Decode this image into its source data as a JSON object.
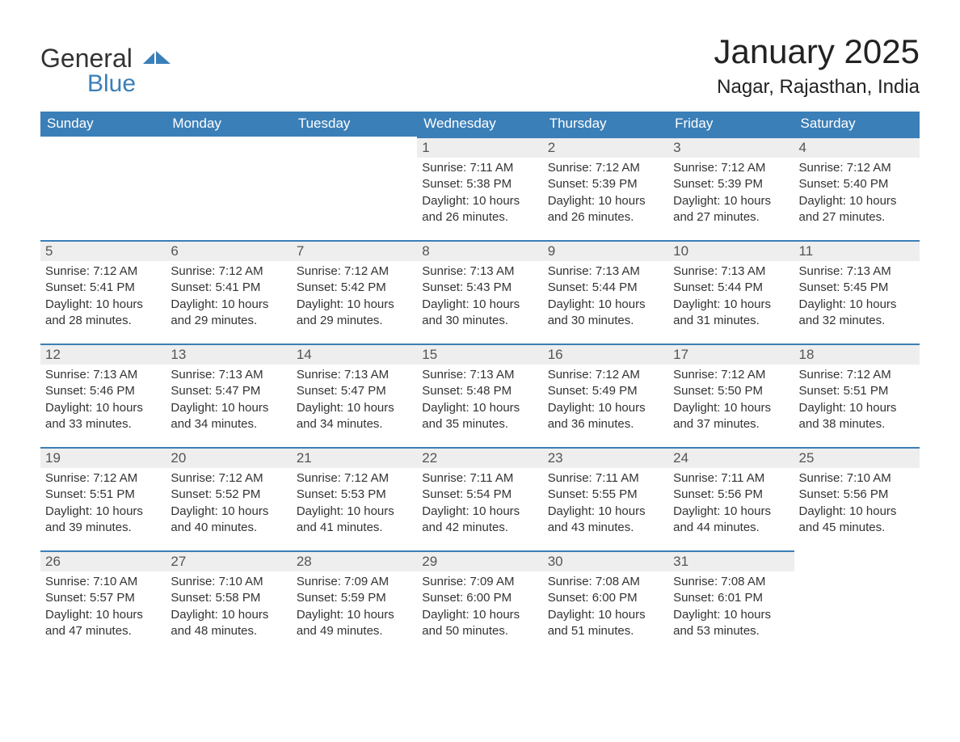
{
  "logo": {
    "word1": "General",
    "word2": "Blue"
  },
  "title": "January 2025",
  "location": "Nagar, Rajasthan, India",
  "colors": {
    "brand_blue": "#3b7fb8",
    "header_bg": "#3b7fb8",
    "header_text": "#ffffff",
    "daynum_bg": "#eeeeee",
    "text": "#333333",
    "page_bg": "#ffffff"
  },
  "fonts": {
    "title_size_pt": 32,
    "location_size_pt": 18,
    "header_size_pt": 13,
    "body_size_pt": 11
  },
  "layout": {
    "columns": 7,
    "rows": 5,
    "aspect": "1188x918"
  },
  "weekdays": [
    "Sunday",
    "Monday",
    "Tuesday",
    "Wednesday",
    "Thursday",
    "Friday",
    "Saturday"
  ],
  "weeks": [
    [
      {
        "n": "",
        "sunrise": "",
        "sunset": "",
        "daylight": ""
      },
      {
        "n": "",
        "sunrise": "",
        "sunset": "",
        "daylight": ""
      },
      {
        "n": "",
        "sunrise": "",
        "sunset": "",
        "daylight": ""
      },
      {
        "n": "1",
        "sunrise": "Sunrise: 7:11 AM",
        "sunset": "Sunset: 5:38 PM",
        "daylight": "Daylight: 10 hours and 26 minutes."
      },
      {
        "n": "2",
        "sunrise": "Sunrise: 7:12 AM",
        "sunset": "Sunset: 5:39 PM",
        "daylight": "Daylight: 10 hours and 26 minutes."
      },
      {
        "n": "3",
        "sunrise": "Sunrise: 7:12 AM",
        "sunset": "Sunset: 5:39 PM",
        "daylight": "Daylight: 10 hours and 27 minutes."
      },
      {
        "n": "4",
        "sunrise": "Sunrise: 7:12 AM",
        "sunset": "Sunset: 5:40 PM",
        "daylight": "Daylight: 10 hours and 27 minutes."
      }
    ],
    [
      {
        "n": "5",
        "sunrise": "Sunrise: 7:12 AM",
        "sunset": "Sunset: 5:41 PM",
        "daylight": "Daylight: 10 hours and 28 minutes."
      },
      {
        "n": "6",
        "sunrise": "Sunrise: 7:12 AM",
        "sunset": "Sunset: 5:41 PM",
        "daylight": "Daylight: 10 hours and 29 minutes."
      },
      {
        "n": "7",
        "sunrise": "Sunrise: 7:12 AM",
        "sunset": "Sunset: 5:42 PM",
        "daylight": "Daylight: 10 hours and 29 minutes."
      },
      {
        "n": "8",
        "sunrise": "Sunrise: 7:13 AM",
        "sunset": "Sunset: 5:43 PM",
        "daylight": "Daylight: 10 hours and 30 minutes."
      },
      {
        "n": "9",
        "sunrise": "Sunrise: 7:13 AM",
        "sunset": "Sunset: 5:44 PM",
        "daylight": "Daylight: 10 hours and 30 minutes."
      },
      {
        "n": "10",
        "sunrise": "Sunrise: 7:13 AM",
        "sunset": "Sunset: 5:44 PM",
        "daylight": "Daylight: 10 hours and 31 minutes."
      },
      {
        "n": "11",
        "sunrise": "Sunrise: 7:13 AM",
        "sunset": "Sunset: 5:45 PM",
        "daylight": "Daylight: 10 hours and 32 minutes."
      }
    ],
    [
      {
        "n": "12",
        "sunrise": "Sunrise: 7:13 AM",
        "sunset": "Sunset: 5:46 PM",
        "daylight": "Daylight: 10 hours and 33 minutes."
      },
      {
        "n": "13",
        "sunrise": "Sunrise: 7:13 AM",
        "sunset": "Sunset: 5:47 PM",
        "daylight": "Daylight: 10 hours and 34 minutes."
      },
      {
        "n": "14",
        "sunrise": "Sunrise: 7:13 AM",
        "sunset": "Sunset: 5:47 PM",
        "daylight": "Daylight: 10 hours and 34 minutes."
      },
      {
        "n": "15",
        "sunrise": "Sunrise: 7:13 AM",
        "sunset": "Sunset: 5:48 PM",
        "daylight": "Daylight: 10 hours and 35 minutes."
      },
      {
        "n": "16",
        "sunrise": "Sunrise: 7:12 AM",
        "sunset": "Sunset: 5:49 PM",
        "daylight": "Daylight: 10 hours and 36 minutes."
      },
      {
        "n": "17",
        "sunrise": "Sunrise: 7:12 AM",
        "sunset": "Sunset: 5:50 PM",
        "daylight": "Daylight: 10 hours and 37 minutes."
      },
      {
        "n": "18",
        "sunrise": "Sunrise: 7:12 AM",
        "sunset": "Sunset: 5:51 PM",
        "daylight": "Daylight: 10 hours and 38 minutes."
      }
    ],
    [
      {
        "n": "19",
        "sunrise": "Sunrise: 7:12 AM",
        "sunset": "Sunset: 5:51 PM",
        "daylight": "Daylight: 10 hours and 39 minutes."
      },
      {
        "n": "20",
        "sunrise": "Sunrise: 7:12 AM",
        "sunset": "Sunset: 5:52 PM",
        "daylight": "Daylight: 10 hours and 40 minutes."
      },
      {
        "n": "21",
        "sunrise": "Sunrise: 7:12 AM",
        "sunset": "Sunset: 5:53 PM",
        "daylight": "Daylight: 10 hours and 41 minutes."
      },
      {
        "n": "22",
        "sunrise": "Sunrise: 7:11 AM",
        "sunset": "Sunset: 5:54 PM",
        "daylight": "Daylight: 10 hours and 42 minutes."
      },
      {
        "n": "23",
        "sunrise": "Sunrise: 7:11 AM",
        "sunset": "Sunset: 5:55 PM",
        "daylight": "Daylight: 10 hours and 43 minutes."
      },
      {
        "n": "24",
        "sunrise": "Sunrise: 7:11 AM",
        "sunset": "Sunset: 5:56 PM",
        "daylight": "Daylight: 10 hours and 44 minutes."
      },
      {
        "n": "25",
        "sunrise": "Sunrise: 7:10 AM",
        "sunset": "Sunset: 5:56 PM",
        "daylight": "Daylight: 10 hours and 45 minutes."
      }
    ],
    [
      {
        "n": "26",
        "sunrise": "Sunrise: 7:10 AM",
        "sunset": "Sunset: 5:57 PM",
        "daylight": "Daylight: 10 hours and 47 minutes."
      },
      {
        "n": "27",
        "sunrise": "Sunrise: 7:10 AM",
        "sunset": "Sunset: 5:58 PM",
        "daylight": "Daylight: 10 hours and 48 minutes."
      },
      {
        "n": "28",
        "sunrise": "Sunrise: 7:09 AM",
        "sunset": "Sunset: 5:59 PM",
        "daylight": "Daylight: 10 hours and 49 minutes."
      },
      {
        "n": "29",
        "sunrise": "Sunrise: 7:09 AM",
        "sunset": "Sunset: 6:00 PM",
        "daylight": "Daylight: 10 hours and 50 minutes."
      },
      {
        "n": "30",
        "sunrise": "Sunrise: 7:08 AM",
        "sunset": "Sunset: 6:00 PM",
        "daylight": "Daylight: 10 hours and 51 minutes."
      },
      {
        "n": "31",
        "sunrise": "Sunrise: 7:08 AM",
        "sunset": "Sunset: 6:01 PM",
        "daylight": "Daylight: 10 hours and 53 minutes."
      },
      {
        "n": "",
        "sunrise": "",
        "sunset": "",
        "daylight": ""
      }
    ]
  ]
}
